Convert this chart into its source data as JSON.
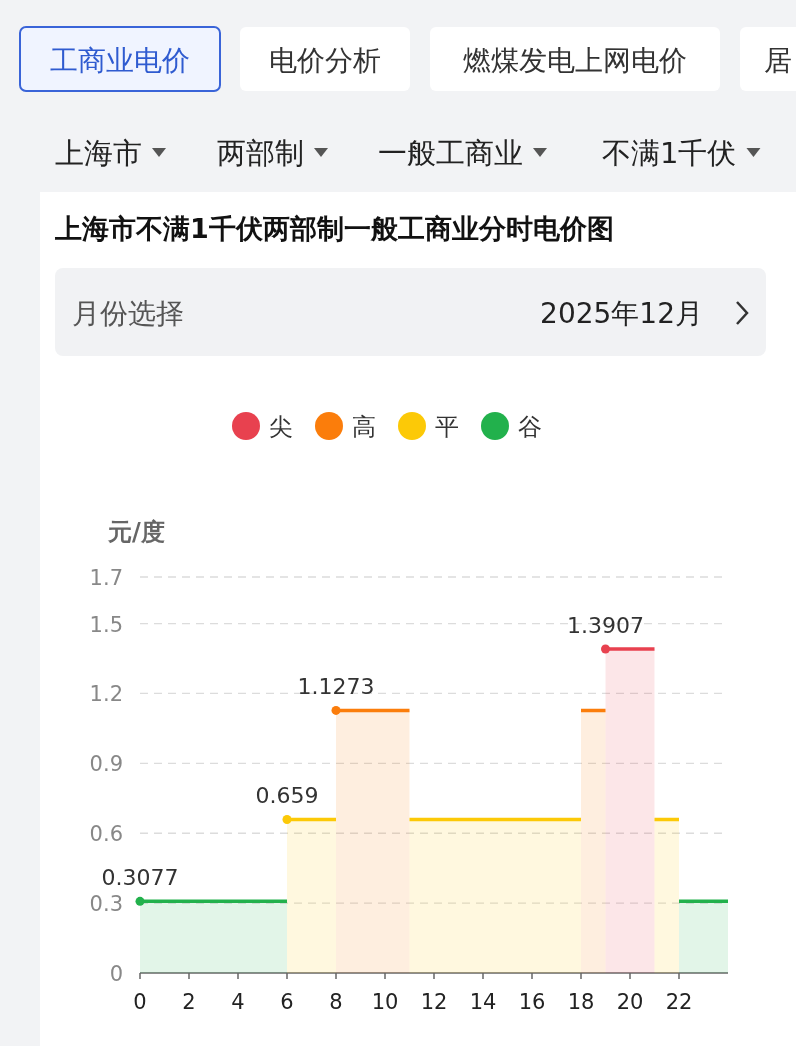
{
  "chart_data": {
    "type": "area",
    "title": "上海市不满1千伏两部制一般工商业分时电价图",
    "ylabel": "元/度",
    "annotations": [
      "工商业电价",
      "电价分析",
      "燃煤发电上网电价",
      "居",
      "上海市",
      "两部制",
      "一般工商业",
      "不满1千伏",
      "月份选择",
      "2025年12月"
    ],
    "series": [
      {
        "name": "尖",
        "color": "#e8414f",
        "x": [
          19,
          21
        ],
        "values": [
          1.3907,
          1.3907
        ],
        "value_labels": [
          "1.3907",
          null
        ]
      },
      {
        "name": "高",
        "color": "#fb7d0b",
        "x": [
          8,
          11,
          15,
          18,
          19
        ],
        "values": [
          1.1273,
          1.1273,
          null,
          1.1273,
          1.1273
        ],
        "value_labels": [
          "1.1273",
          null,
          null,
          null,
          null
        ]
      },
      {
        "name": "平",
        "color": "#fcc907",
        "x": [
          6,
          8,
          9.5,
          11,
          18,
          20,
          21,
          22
        ],
        "values": [
          0.659,
          0.659,
          null,
          0.659,
          0.659,
          null,
          0.659,
          0.659
        ],
        "value_labels": [
          "0.659",
          null,
          null,
          null,
          null,
          null,
          null,
          null
        ]
      },
      {
        "name": "谷",
        "color": "#22b14c",
        "x": [
          0,
          6,
          14,
          22,
          24
        ],
        "values": [
          0.3077,
          0.3077,
          null,
          0.3077,
          0.3077
        ],
        "value_labels": [
          "0.3077",
          null,
          null,
          null,
          null
        ]
      }
    ],
    "xlim": [
      0,
      24
    ],
    "xticks": [
      0,
      2,
      4,
      6,
      8,
      10,
      12,
      14,
      16,
      18,
      20,
      22
    ],
    "ylim": [
      0,
      1.7
    ],
    "yticks": [
      0,
      0.3,
      0.6,
      0.9,
      1.2,
      1.5,
      1.7
    ],
    "grid": "y",
    "legend": "top"
  }
}
